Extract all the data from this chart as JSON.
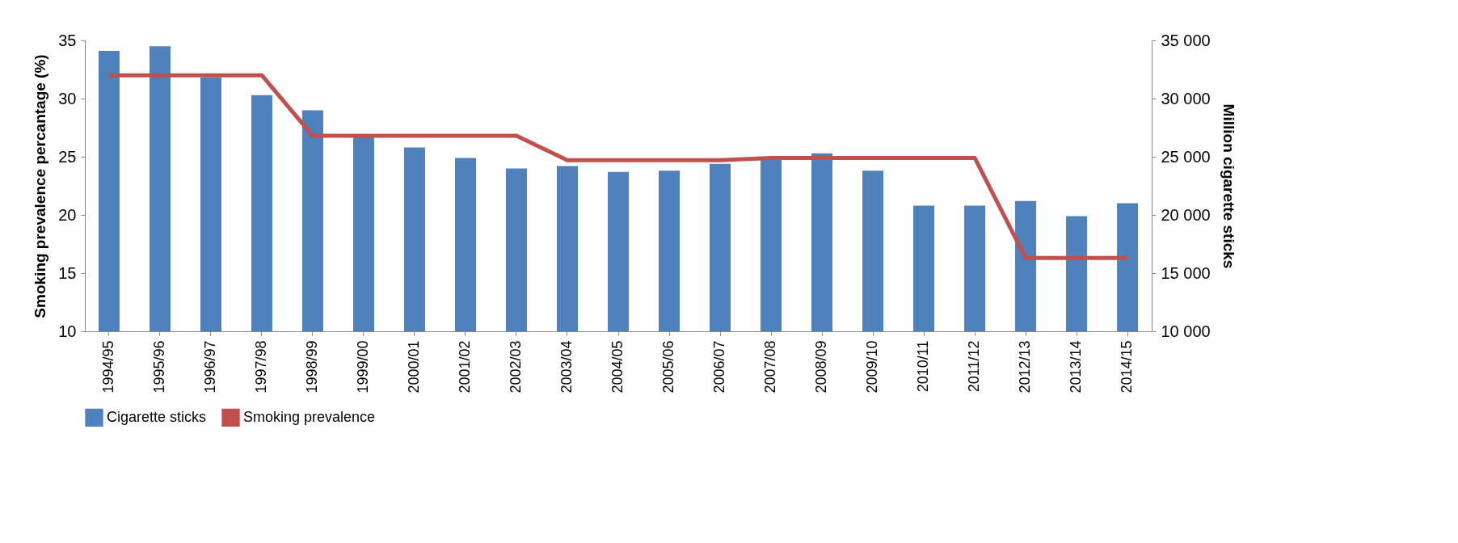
{
  "chart_data": {
    "type": "bar",
    "categories": [
      "1994/95",
      "1995/96",
      "1996/97",
      "1997/98",
      "1998/99",
      "1999/00",
      "2000/01",
      "2001/02",
      "2002/03",
      "2003/04",
      "2004/05",
      "2005/06",
      "2006/07",
      "2007/08",
      "2008/09",
      "2009/10",
      "2010/11",
      "2011/12",
      "2012/13",
      "2013/14",
      "2014/15"
    ],
    "series": [
      {
        "name": "Cigarette sticks",
        "axis": "y2",
        "color": "#4f81bd",
        "values": [
          34100,
          34500,
          31800,
          30300,
          29000,
          26900,
          25800,
          24900,
          24000,
          24200,
          23700,
          23800,
          24400,
          24800,
          25300,
          23800,
          20800,
          20800,
          21200,
          19900,
          21000
        ]
      },
      {
        "name": "Smoking prevalence",
        "type": "line",
        "axis": "y",
        "color": "#c0504d",
        "values": [
          32,
          32,
          32,
          32,
          26.8,
          26.8,
          26.8,
          26.8,
          26.8,
          24.7,
          24.7,
          24.7,
          24.7,
          24.9,
          24.9,
          24.9,
          24.9,
          24.9,
          16.3,
          16.3,
          16.3
        ]
      }
    ],
    "ylabel": "Smoking prevalence percantage (%)",
    "y2label": "Million cigarette sticks",
    "ylim": [
      10,
      35
    ],
    "yticks": [
      10,
      15,
      20,
      25,
      30,
      35
    ],
    "y2lim": [
      10000,
      35000
    ],
    "y2ticks": [
      {
        "value": 10000,
        "label": "10 000"
      },
      {
        "value": 15000,
        "label": "15 000"
      },
      {
        "value": 20000,
        "label": "20 000"
      },
      {
        "value": 25000,
        "label": "25 000"
      },
      {
        "value": 30000,
        "label": "30 000"
      },
      {
        "value": 35000,
        "label": "35 000"
      }
    ],
    "legend": "bottom",
    "grid": false,
    "line_style": "solid",
    "marker": "none"
  }
}
